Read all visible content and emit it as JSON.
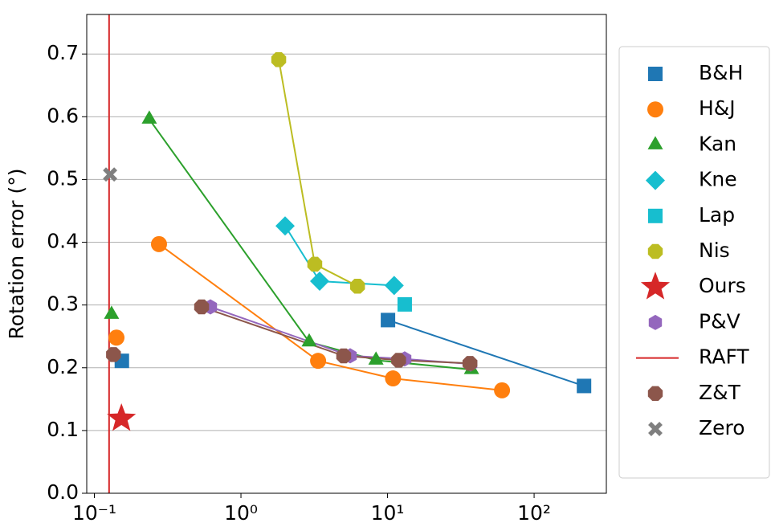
{
  "chart_data": {
    "type": "line",
    "ylabel": "Rotation error (°)",
    "xscale": "log",
    "grid": "y",
    "legend": "outside right",
    "xlim": [
      0.0887,
      311
    ],
    "ylim": [
      0,
      0.763
    ],
    "xticks": [
      {
        "value": 0.1,
        "label": "10⁻¹"
      },
      {
        "value": 1,
        "label": "10⁰"
      },
      {
        "value": 10,
        "label": "10¹"
      },
      {
        "value": 100,
        "label": "10²"
      }
    ],
    "yticks": [
      {
        "value": 0,
        "label": "0.0"
      },
      0.1,
      0.2,
      0.3,
      0.4,
      0.5,
      0.6,
      0.7
    ],
    "series": [
      {
        "name": "B&H",
        "color": "#1f77b4",
        "marker": "square",
        "x": [
          0.154,
          null,
          10.07,
          219
        ],
        "values": [
          0.211,
          null,
          0.276,
          0.171
        ]
      },
      {
        "name": "H&J",
        "color": "#ff7f0e",
        "marker": "circle",
        "x": [
          0.1415,
          null,
          0.276,
          3.36,
          10.9,
          60.4
        ],
        "values": [
          0.248,
          null,
          0.397,
          0.211,
          0.183,
          0.164
        ]
      },
      {
        "name": "Kan",
        "color": "#2ca02c",
        "marker": "triangle",
        "x": [
          0.131,
          null,
          0.237,
          2.92,
          8.34,
          37.4
        ],
        "values": [
          0.285,
          null,
          0.596,
          0.241,
          0.212,
          0.197
        ]
      },
      {
        "name": "Kne",
        "color": "#17becf",
        "marker": "diamond",
        "x": [
          2.0,
          3.44,
          11.1
        ],
        "values": [
          0.426,
          0.338,
          0.331
        ]
      },
      {
        "name": "Lap",
        "color": "#17becf",
        "marker": "square",
        "x": [
          13.1
        ],
        "values": [
          0.301
        ]
      },
      {
        "name": "Nis",
        "color": "#bcbd22",
        "marker": "octagon",
        "x": [
          1.81,
          3.19,
          6.24
        ],
        "values": [
          0.691,
          0.365,
          0.33
        ]
      },
      {
        "name": "Ours",
        "color": "#d62728",
        "marker": "star",
        "x": [
          0.153
        ],
        "values": [
          0.119
        ]
      },
      {
        "name": "P&V",
        "color": "#9467bd",
        "marker": "hexagon",
        "x": [
          0.619,
          5.56,
          13.1,
          36.9
        ],
        "values": [
          0.297,
          0.219,
          0.214,
          0.206
        ]
      },
      {
        "name": "RAFT",
        "color": "#d62728",
        "marker": "vline",
        "x": [
          0.126
        ]
      },
      {
        "name": "Z&T",
        "color": "#8c564b",
        "marker": "octagon",
        "x": [
          0.135,
          null,
          0.539,
          5.02,
          11.9,
          36.5
        ],
        "values": [
          0.221,
          null,
          0.297,
          0.219,
          0.212,
          0.207
        ]
      },
      {
        "name": "Zero",
        "color": "#7f7f7f",
        "marker": "x",
        "x": [
          0.128
        ],
        "values": [
          0.508
        ]
      }
    ]
  }
}
